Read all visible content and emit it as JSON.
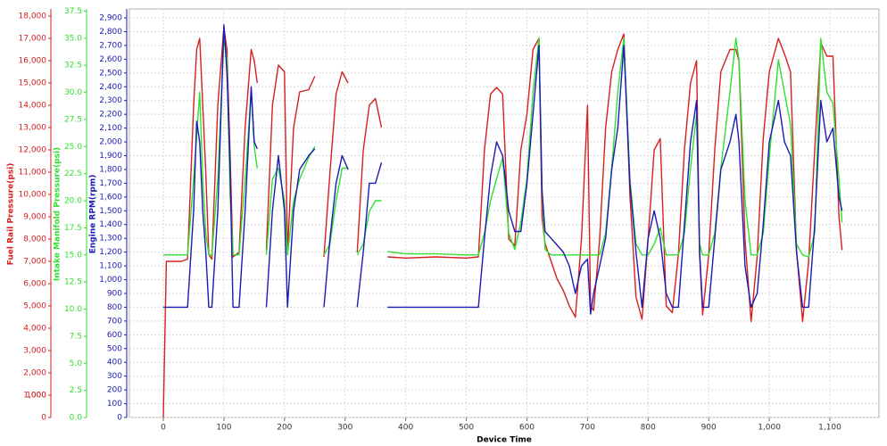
{
  "chart_data": {
    "type": "line",
    "x_label": "Device Time",
    "y_label": "Fuel Rail Pressure(psi)",
    "y2_label": "Intake Manifold Pressure(psi)",
    "y3_label": "Engine RPM(rpm)",
    "xlim": [
      -56,
      1181
    ],
    "xticks": [
      0,
      100,
      200,
      300,
      400,
      500,
      600,
      700,
      800,
      900,
      {
        "value": 1000,
        "label": "1,000"
      },
      {
        "value": 1100,
        "label": "1,100"
      }
    ],
    "ylim": [
      0,
      18320
    ],
    "yticks": [
      0,
      1000,
      {
        "value": 1000,
        "label": "1,000"
      },
      {
        "value": 2000,
        "label": "2,000"
      },
      {
        "value": 3000,
        "label": "3,000"
      },
      {
        "value": 4000,
        "label": "4,000"
      },
      {
        "value": 5000,
        "label": "5,000"
      },
      {
        "value": 6000,
        "label": "6,000"
      },
      {
        "value": 7000,
        "label": "7,000"
      },
      {
        "value": 8000,
        "label": "8,000"
      },
      {
        "value": 9000,
        "label": "9,000"
      },
      {
        "value": 10000,
        "label": "10,000"
      },
      {
        "value": 11000,
        "label": "11,000"
      },
      {
        "value": 12000,
        "label": "12,000"
      },
      {
        "value": 13000,
        "label": "13,000"
      },
      {
        "value": 14000,
        "label": "14,000"
      },
      {
        "value": 15000,
        "label": "15,000"
      },
      {
        "value": 16000,
        "label": "16,000"
      },
      {
        "value": 17000,
        "label": "17,000"
      },
      {
        "value": 18000,
        "label": "18,000"
      }
    ],
    "y2lim": [
      0,
      37.7
    ],
    "y2ticks": [
      {
        "value": 0,
        "label": "0.0"
      },
      2.5,
      {
        "value": 5,
        "label": "5.0"
      },
      7.5,
      {
        "value": 10,
        "label": "10.0"
      },
      12.5,
      {
        "value": 15,
        "label": "15.0"
      },
      17.5,
      {
        "value": 20,
        "label": "20.0"
      },
      22.5,
      {
        "value": 25,
        "label": "25.0"
      },
      27.5,
      {
        "value": 30,
        "label": "30.0"
      },
      32.5,
      {
        "value": 35,
        "label": "35.0"
      },
      37.5
    ],
    "y3lim": [
      0,
      2965
    ],
    "y3ticks": [
      0,
      100,
      200,
      300,
      400,
      500,
      600,
      700,
      800,
      900,
      {
        "value": 1000,
        "label": "1,000"
      },
      {
        "value": 1100,
        "label": "1,100"
      },
      {
        "value": 1200,
        "label": "1,200"
      },
      {
        "value": 1300,
        "label": "1,300"
      },
      {
        "value": 1400,
        "label": "1,400"
      },
      {
        "value": 1500,
        "label": "1,500"
      },
      {
        "value": 1600,
        "label": "1,600"
      },
      {
        "value": 1700,
        "label": "1,700"
      },
      {
        "value": 1800,
        "label": "1,800"
      },
      {
        "value": 1900,
        "label": "1,900"
      },
      {
        "value": 2000,
        "label": "2,000"
      },
      {
        "value": 2100,
        "label": "2,100"
      },
      {
        "value": 2200,
        "label": "2,200"
      },
      {
        "value": 2300,
        "label": "2,300"
      },
      {
        "value": 2400,
        "label": "2,400"
      },
      {
        "value": 2500,
        "label": "2,500"
      },
      {
        "value": 2600,
        "label": "2,600"
      },
      {
        "value": 2700,
        "label": "2,700"
      },
      {
        "value": 2800,
        "label": "2,800"
      },
      {
        "value": 2900,
        "label": "2,900"
      }
    ],
    "grid": true,
    "x": [
      0,
      5,
      10,
      20,
      30,
      40,
      50,
      55,
      60,
      65,
      70,
      75,
      80,
      90,
      100,
      105,
      110,
      115,
      125,
      135,
      145,
      150,
      155,
      160,
      170,
      180,
      190,
      200,
      205,
      215,
      225,
      240,
      250,
      255,
      265,
      275,
      285,
      295,
      305,
      310,
      320,
      330,
      340,
      350,
      360,
      365,
      370,
      400,
      450,
      500,
      520,
      530,
      540,
      550,
      560,
      570,
      580,
      590,
      600,
      610,
      620,
      625,
      630,
      640,
      650,
      660,
      670,
      680,
      690,
      700,
      705,
      710,
      720,
      730,
      740,
      750,
      760,
      770,
      780,
      790,
      800,
      810,
      820,
      830,
      840,
      850,
      860,
      870,
      880,
      885,
      890,
      900,
      910,
      920,
      935,
      945,
      950,
      960,
      970,
      980,
      990,
      1000,
      1015,
      1025,
      1035,
      1045,
      1055,
      1065,
      1075,
      1085,
      1095,
      1105,
      1115,
      1120
    ],
    "series": [
      {
        "name": "Fuel Rail Pressure(psi)",
        "color": "#d42020",
        "axis": "y",
        "values": [
          0,
          7000,
          7000,
          7000,
          7000,
          7100,
          14000,
          16500,
          17000,
          14000,
          11000,
          7300,
          7100,
          14000,
          17500,
          16500,
          12000,
          7200,
          7400,
          13000,
          16500,
          16000,
          15000,
          null,
          7500,
          14000,
          15800,
          15500,
          7400,
          13000,
          14600,
          14700,
          15300,
          null,
          7200,
          11000,
          14500,
          15500,
          15000,
          null,
          7400,
          12000,
          14000,
          14300,
          13000,
          null,
          7200,
          7150,
          7200,
          7150,
          7200,
          12000,
          14500,
          14800,
          14500,
          8000,
          7700,
          12000,
          13600,
          16500,
          17000,
          9000,
          7800,
          7000,
          6200,
          5700,
          5000,
          4500,
          8000,
          14000,
          5000,
          4800,
          8000,
          13000,
          15500,
          16500,
          17200,
          10000,
          5400,
          4400,
          8000,
          12000,
          12500,
          5000,
          4700,
          7300,
          12000,
          15000,
          16000,
          7300,
          4600,
          7300,
          12000,
          15500,
          16500,
          16500,
          16000,
          8000,
          4300,
          7200,
          12500,
          15500,
          17000,
          16300,
          15500,
          7500,
          4300,
          7000,
          12000,
          16800,
          16200,
          16200,
          9000,
          7500
        ]
      },
      {
        "name": "Intake Manifold Pressure(psi)",
        "color": "#2fe02f",
        "axis": "y2",
        "values": [
          15,
          15,
          15,
          15,
          15,
          15,
          22,
          26,
          30,
          22,
          17,
          15,
          15,
          22,
          35,
          33,
          21,
          15,
          15,
          22,
          30,
          25,
          23,
          null,
          15,
          22,
          23,
          20,
          15,
          20,
          22,
          24,
          25,
          null,
          15,
          16,
          20,
          23,
          23,
          null,
          15,
          16,
          19,
          20,
          20,
          null,
          15.3,
          15.1,
          15.1,
          15,
          15,
          17,
          20,
          22,
          24,
          17,
          15.5,
          18,
          22,
          30,
          35,
          21,
          15.5,
          15,
          15,
          15,
          15,
          15,
          15,
          15,
          15,
          15,
          15,
          17,
          23,
          30,
          35,
          22,
          16,
          15,
          15,
          16,
          17.5,
          15,
          15,
          15,
          17,
          23,
          28,
          16,
          15,
          15,
          17,
          23,
          30,
          35,
          33,
          20,
          15,
          15,
          17,
          24,
          33,
          30,
          27,
          16,
          15,
          14.8,
          17,
          35,
          30,
          29,
          22,
          18
        ]
      },
      {
        "name": "Engine RPM(rpm)",
        "color": "#1a1ab4",
        "axis": "y3",
        "values": [
          800,
          800,
          800,
          800,
          800,
          800,
          1500,
          2150,
          2000,
          1500,
          1200,
          800,
          800,
          1500,
          2850,
          2500,
          1850,
          800,
          800,
          1500,
          2400,
          2000,
          1950,
          null,
          800,
          1500,
          1900,
          1500,
          800,
          1500,
          1800,
          1900,
          1950,
          null,
          800,
          1300,
          1700,
          1900,
          1800,
          null,
          800,
          1200,
          1700,
          1700,
          1850,
          null,
          800,
          800,
          800,
          800,
          800,
          1300,
          1750,
          2000,
          1900,
          1500,
          1350,
          1350,
          1700,
          2200,
          2700,
          1650,
          1350,
          1300,
          1250,
          1200,
          1100,
          900,
          1100,
          1150,
          750,
          900,
          1100,
          1300,
          1800,
          2100,
          2700,
          1700,
          1200,
          800,
          1300,
          1500,
          1300,
          900,
          800,
          800,
          1400,
          2000,
          2300,
          1200,
          800,
          800,
          1300,
          1800,
          2000,
          2200,
          2000,
          1100,
          800,
          900,
          1400,
          2000,
          2300,
          2000,
          1900,
          1200,
          800,
          800,
          1400,
          2300,
          2000,
          2100,
          1600,
          1500
        ]
      }
    ]
  }
}
